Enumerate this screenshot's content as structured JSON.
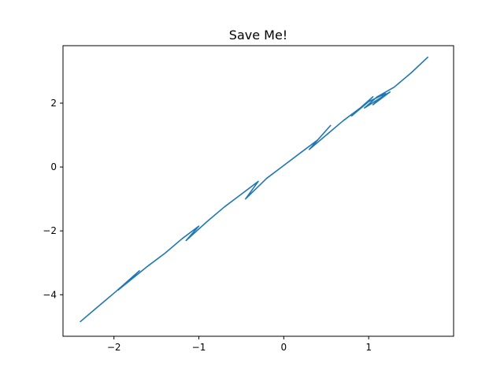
{
  "chart_data": {
    "type": "line",
    "title": "Save Me!",
    "xlabel": "",
    "ylabel": "",
    "xlim": [
      -2.6,
      2.0
    ],
    "ylim": [
      -5.3,
      3.8
    ],
    "xticks": [
      -2,
      -1,
      0,
      1
    ],
    "xtick_labels": [
      "−2",
      "−1",
      "0",
      "1"
    ],
    "yticks": [
      -4,
      -2,
      0,
      2
    ],
    "ytick_labels": [
      "−4",
      "−2",
      "0",
      "2"
    ],
    "grid": false,
    "legend": "none",
    "line_color": "#1f77b4",
    "series": [
      {
        "values_x": [
          -2.4,
          -2.2,
          -2.0,
          -1.85,
          -1.7,
          -1.95,
          -1.6,
          -1.4,
          -1.2,
          -1.0,
          -1.15,
          -0.9,
          -0.7,
          -0.5,
          -0.3,
          -0.45,
          -0.2,
          0.0,
          0.2,
          0.4,
          0.55,
          0.3,
          0.5,
          0.7,
          0.9,
          1.05,
          0.8,
          1.0,
          1.2,
          1.05,
          1.25,
          0.95,
          1.1,
          1.3,
          1.5,
          1.7
        ],
        "values_y": [
          -4.85,
          -4.4,
          -3.95,
          -3.6,
          -3.25,
          -3.85,
          -3.1,
          -2.7,
          -2.25,
          -1.85,
          -2.3,
          -1.7,
          -1.25,
          -0.85,
          -0.45,
          -1.0,
          -0.35,
          0.05,
          0.45,
          0.85,
          1.3,
          0.55,
          1.0,
          1.45,
          1.85,
          2.2,
          1.6,
          2.05,
          2.3,
          1.95,
          2.35,
          1.85,
          2.2,
          2.5,
          2.95,
          3.45
        ]
      }
    ]
  }
}
